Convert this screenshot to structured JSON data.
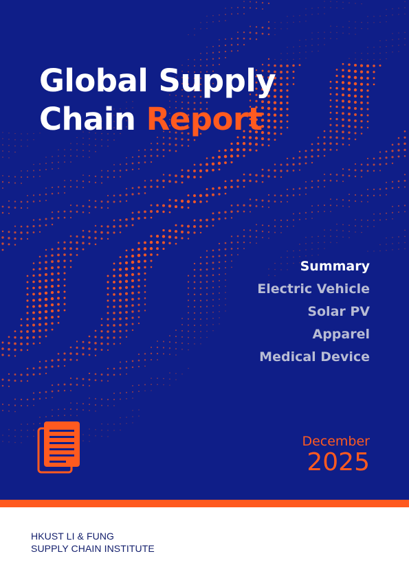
{
  "cover": {
    "title_line1": "Global Supply",
    "title_line2_part1": "Chain ",
    "title_line2_accent": "Report"
  },
  "contents": [
    {
      "label": "Summary",
      "active": true
    },
    {
      "label": "Electric Vehicle",
      "active": false
    },
    {
      "label": "Solar PV",
      "active": false
    },
    {
      "label": "Apparel",
      "active": false
    },
    {
      "label": "Medical Device",
      "active": false
    }
  ],
  "date": {
    "month": "December",
    "year": "2025"
  },
  "publisher": {
    "line1": "HKUST LI & FUNG",
    "line2": "SUPPLY CHAIN INSTITUTE"
  },
  "icons": {
    "document": "document-icon"
  },
  "colors": {
    "background": "#0f1e88",
    "accent": "#ff5a1f",
    "muted": "#b8bcd4",
    "footer_text": "#111d6b"
  }
}
